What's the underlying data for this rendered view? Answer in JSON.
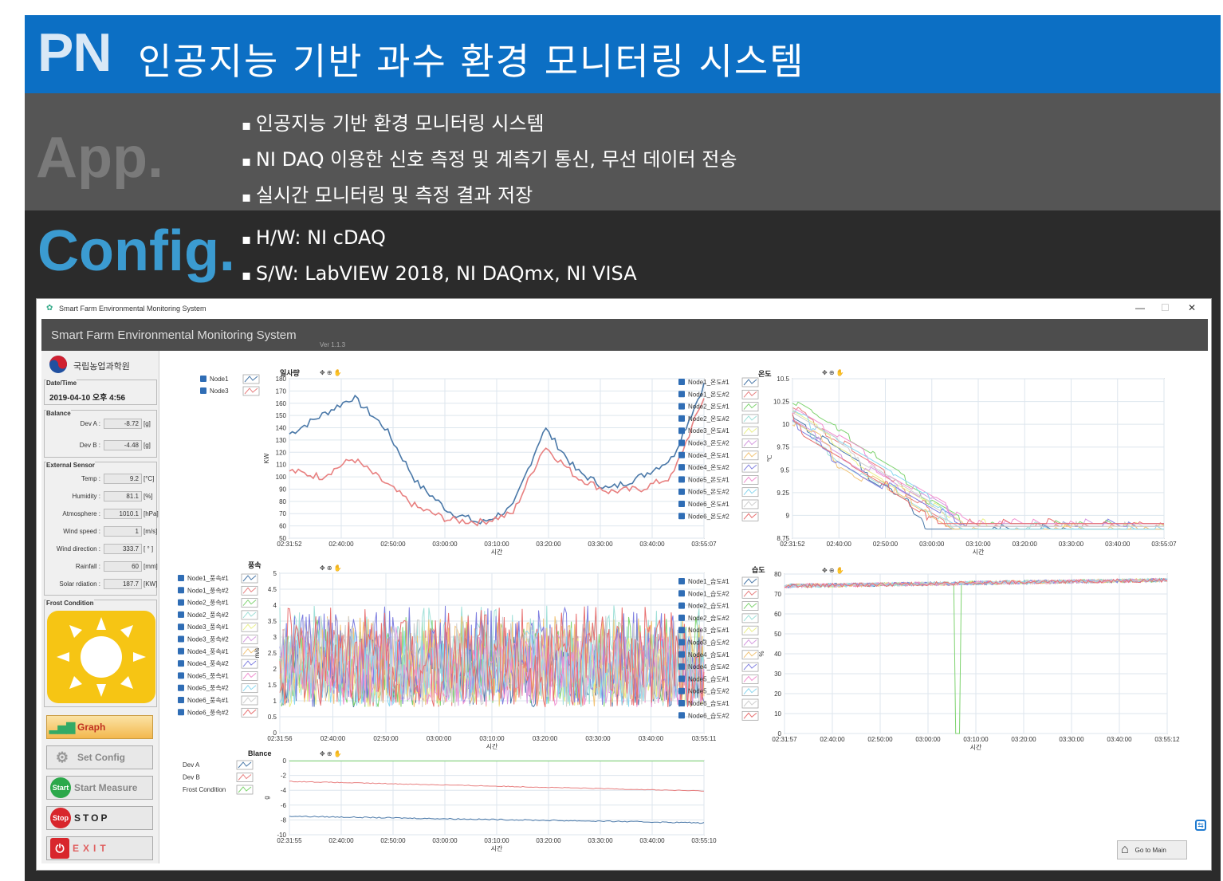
{
  "header": {
    "abbr": "PN",
    "title": "인공지능 기반 과수 환경 모니터링 시스템"
  },
  "app": {
    "label": "App.",
    "bullets": [
      "인공지능 기반 환경 모니터링 시스템",
      "NI DAQ 이용한 신호 측정 및 계측기 통신, 무선 데이터 전송",
      "실시간 모니터링 및 측정 결과 저장"
    ]
  },
  "config": {
    "label": "Config.",
    "bullets": [
      "H/W: NI cDAQ",
      "S/W: LabVIEW 2018, NI DAQmx, NI VISA"
    ]
  },
  "window": {
    "title": "Smart Farm Environmental Monitoring System",
    "app_title": "Smart Farm Environmental Monitoring System",
    "version": "Ver 1.1.3"
  },
  "left": {
    "org": "국립농업과학원",
    "datetime_label": "Date/Time",
    "datetime": "2019-04-10 오후 4:56",
    "balance_label": "Balance",
    "balance": [
      {
        "label": "Dev A :",
        "value": "-8.72",
        "unit": "[g]"
      },
      {
        "label": "Dev B :",
        "value": "-4.48",
        "unit": "[g]"
      }
    ],
    "ext_label": "External Sensor",
    "sensors": [
      {
        "label": "Temp :",
        "value": "9.2",
        "unit": "[°C]"
      },
      {
        "label": "Humidity :",
        "value": "81.1",
        "unit": "[%]"
      },
      {
        "label": "Atmosphere :",
        "value": "1010.1",
        "unit": "[hPa]"
      },
      {
        "label": "Wind speed :",
        "value": "1",
        "unit": "[m/s]"
      },
      {
        "label": "Wind direction :",
        "value": "333.7",
        "unit": "[ ° ]"
      },
      {
        "label": "Rainfall :",
        "value": "60",
        "unit": "[mm]"
      },
      {
        "label": "Solar rdiation :",
        "value": "187.7",
        "unit": "[KW]"
      }
    ],
    "frost_label": "Frost Condition",
    "buttons": {
      "graph": "Graph",
      "config": "Set Config",
      "measure": "Start Measure",
      "stop": "STOP",
      "exit": "EXIT",
      "start_badge": "Start",
      "stop_badge": "Stop"
    }
  },
  "goto_main": "Go to Main",
  "chart_data": [
    {
      "type": "line",
      "title": "일사량",
      "ylabel": "KW",
      "xlabel": "시간",
      "ylim": [
        50,
        180
      ],
      "yticks": [
        "180",
        "170",
        "160",
        "150",
        "140",
        "130",
        "120",
        "110",
        "100",
        "90",
        "80",
        "70",
        "60",
        "50"
      ],
      "xticks": [
        "02:31:52",
        "02:40:00",
        "02:50:00",
        "03:00:00",
        "03:10:00",
        "03:20:00",
        "03:30:00",
        "03:40:00",
        "03:55:07"
      ],
      "series": [
        {
          "name": "Node1",
          "color": "#4a78a8"
        },
        {
          "name": "Node3",
          "color": "#e88080"
        }
      ]
    },
    {
      "type": "line",
      "title": "온도",
      "ylabel": "℃",
      "xlabel": "시간",
      "ylim": [
        8.75,
        10.5
      ],
      "yticks": [
        "10.5",
        "10.25",
        "10",
        "9.75",
        "9.5",
        "9.25",
        "9",
        "8.75"
      ],
      "xticks": [
        "02:31:52",
        "02:40:00",
        "02:50:00",
        "03:00:00",
        "03:10:00",
        "03:20:00",
        "03:30:00",
        "03:40:00",
        "03:55:07"
      ],
      "series": [
        {
          "name": "Node1_온도#1",
          "color": "#4a78a8"
        },
        {
          "name": "Node1_온도#2",
          "color": "#e88080"
        },
        {
          "name": "Node2_온도#1",
          "color": "#7ed36f"
        },
        {
          "name": "Node2_온도#2",
          "color": "#9fe0d8"
        },
        {
          "name": "Node3_온도#1",
          "color": "#e9f08a"
        },
        {
          "name": "Node3_온도#2",
          "color": "#d59ae0"
        },
        {
          "name": "Node4_온도#1",
          "color": "#f2c477"
        },
        {
          "name": "Node4_온도#2",
          "color": "#7e7ee0"
        },
        {
          "name": "Node5_온도#1",
          "color": "#f08fd0"
        },
        {
          "name": "Node5_온도#2",
          "color": "#8ad8f0"
        },
        {
          "name": "Node6_온도#1",
          "color": "#cfcfcf"
        },
        {
          "name": "Node6_온도#2",
          "color": "#e86f6f"
        }
      ]
    },
    {
      "type": "line",
      "title": "풍속",
      "ylabel": "m/s",
      "xlabel": "시간",
      "ylim": [
        0,
        5
      ],
      "yticks": [
        "5",
        "4.5",
        "4",
        "3.5",
        "3",
        "2.5",
        "2",
        "1.5",
        "1",
        "0.5",
        "0"
      ],
      "xticks": [
        "02:31:56",
        "02:40:00",
        "02:50:00",
        "03:00:00",
        "03:10:00",
        "03:20:00",
        "03:30:00",
        "03:40:00",
        "03:55:11"
      ],
      "series": [
        {
          "name": "Node1_풍속#1",
          "color": "#4a78a8"
        },
        {
          "name": "Node1_풍속#2",
          "color": "#e88080"
        },
        {
          "name": "Node2_풍속#1",
          "color": "#7ed36f"
        },
        {
          "name": "Node2_풍속#2",
          "color": "#9fe0d8"
        },
        {
          "name": "Node3_풍속#1",
          "color": "#e9f08a"
        },
        {
          "name": "Node3_풍속#2",
          "color": "#d59ae0"
        },
        {
          "name": "Node4_풍속#1",
          "color": "#f2c477"
        },
        {
          "name": "Node4_풍속#2",
          "color": "#7e7ee0"
        },
        {
          "name": "Node5_풍속#1",
          "color": "#f08fd0"
        },
        {
          "name": "Node5_풍속#2",
          "color": "#8ad8f0"
        },
        {
          "name": "Node6_풍속#1",
          "color": "#cfcfcf"
        },
        {
          "name": "Node6_풍속#2",
          "color": "#e86f6f"
        }
      ]
    },
    {
      "type": "line",
      "title": "습도",
      "ylabel": "%",
      "xlabel": "시간",
      "ylim": [
        0,
        80
      ],
      "yticks": [
        "80",
        "70",
        "60",
        "50",
        "40",
        "30",
        "20",
        "10",
        "0"
      ],
      "xticks": [
        "02:31:57",
        "02:40:00",
        "02:50:00",
        "03:00:00",
        "03:10:00",
        "03:20:00",
        "03:30:00",
        "03:40:00",
        "03:55:12"
      ],
      "series": [
        {
          "name": "Node1_습도#1",
          "color": "#4a78a8"
        },
        {
          "name": "Node1_습도#2",
          "color": "#e88080"
        },
        {
          "name": "Node2_습도#1",
          "color": "#7ed36f"
        },
        {
          "name": "Node2_습도#2",
          "color": "#9fe0d8"
        },
        {
          "name": "Node3_습도#1",
          "color": "#e9f08a"
        },
        {
          "name": "Node3_습도#2",
          "color": "#d59ae0"
        },
        {
          "name": "Node4_습도#1",
          "color": "#f2c477"
        },
        {
          "name": "Node4_습도#2",
          "color": "#7e7ee0"
        },
        {
          "name": "Node5_습도#1",
          "color": "#f08fd0"
        },
        {
          "name": "Node5_습도#2",
          "color": "#8ad8f0"
        },
        {
          "name": "Node6_습도#1",
          "color": "#cfcfcf"
        },
        {
          "name": "Node6_습도#2",
          "color": "#e86f6f"
        }
      ]
    },
    {
      "type": "line",
      "title": "Blance",
      "ylabel": "g",
      "xlabel": "시간",
      "ylim": [
        -10,
        0
      ],
      "yticks": [
        "0",
        "-2",
        "-4",
        "-6",
        "-8",
        "-10"
      ],
      "xticks": [
        "02:31:55",
        "02:40:00",
        "02:50:00",
        "03:00:00",
        "03:10:00",
        "03:20:00",
        "03:30:00",
        "03:40:00",
        "03:55:10"
      ],
      "series": [
        {
          "name": "Dev A",
          "color": "#4a78a8"
        },
        {
          "name": "Dev B",
          "color": "#e88080"
        },
        {
          "name": "Frost Condition",
          "color": "#7ed36f"
        }
      ]
    }
  ]
}
